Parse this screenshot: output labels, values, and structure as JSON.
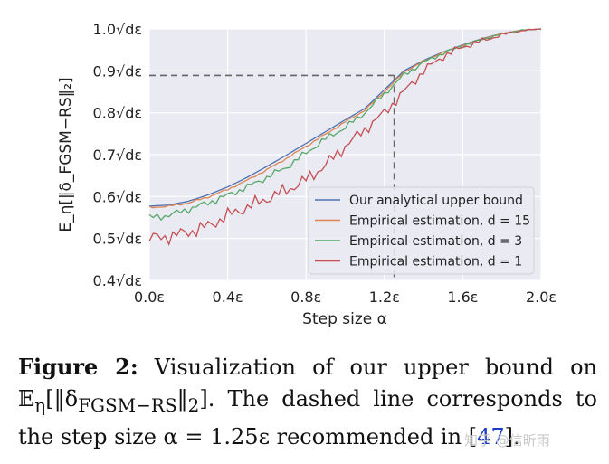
{
  "chart_data": {
    "type": "line",
    "xlabel": "Step size α",
    "ylabel": "E_η[‖δ_FGSM−RS‖₂]",
    "xlim": [
      0.0,
      2.0
    ],
    "ylim": [
      0.4,
      1.0
    ],
    "x_ticks": [
      {
        "value": 0.0,
        "label": "0.0ε"
      },
      {
        "value": 0.4,
        "label": "0.4ε"
      },
      {
        "value": 0.8,
        "label": "0.8ε"
      },
      {
        "value": 1.2,
        "label": "1.2ε"
      },
      {
        "value": 1.6,
        "label": "1.6ε"
      },
      {
        "value": 2.0,
        "label": "2.0ε"
      }
    ],
    "y_ticks": [
      {
        "value": 0.4,
        "label": "0.4√dε"
      },
      {
        "value": 0.5,
        "label": "0.5√dε"
      },
      {
        "value": 0.6,
        "label": "0.6√dε"
      },
      {
        "value": 0.7,
        "label": "0.7√dε"
      },
      {
        "value": 0.8,
        "label": "0.8√dε"
      },
      {
        "value": 0.9,
        "label": "0.9√dε"
      },
      {
        "value": 1.0,
        "label": "1.0√dε"
      }
    ],
    "reference_line": {
      "x": 1.25,
      "y": 0.889
    },
    "grid": true,
    "legend_position": "lower-right",
    "series": [
      {
        "name": "Our analytical upper bound",
        "color": "#4c72b0",
        "noise": 0,
        "x": [
          0,
          0.1,
          0.2,
          0.3,
          0.4,
          0.5,
          0.6,
          0.7,
          0.8,
          0.9,
          1.0,
          1.1,
          1.2,
          1.3,
          1.4,
          1.5,
          1.6,
          1.7,
          1.8,
          1.9,
          2.0
        ],
        "y": [
          0.577,
          0.58,
          0.589,
          0.604,
          0.623,
          0.646,
          0.672,
          0.699,
          0.727,
          0.755,
          0.783,
          0.81,
          0.855,
          0.9,
          0.925,
          0.945,
          0.962,
          0.977,
          0.989,
          0.997,
          1.0
        ]
      },
      {
        "name": "Empirical estimation, d = 15",
        "color": "#dd8452",
        "noise": 0.002,
        "x": [
          0,
          0.1,
          0.2,
          0.3,
          0.4,
          0.5,
          0.6,
          0.7,
          0.8,
          0.9,
          1.0,
          1.1,
          1.2,
          1.3,
          1.4,
          1.5,
          1.6,
          1.7,
          1.8,
          1.9,
          2.0
        ],
        "y": [
          0.574,
          0.577,
          0.585,
          0.599,
          0.617,
          0.639,
          0.664,
          0.691,
          0.72,
          0.749,
          0.778,
          0.806,
          0.85,
          0.897,
          0.923,
          0.944,
          0.961,
          0.976,
          0.989,
          0.997,
          1.0
        ]
      },
      {
        "name": "Empirical estimation, d = 3",
        "color": "#55a868",
        "noise": 0.007,
        "x": [
          0,
          0.1,
          0.2,
          0.3,
          0.4,
          0.5,
          0.6,
          0.7,
          0.8,
          0.9,
          1.0,
          1.1,
          1.2,
          1.3,
          1.4,
          1.5,
          1.6,
          1.7,
          1.8,
          1.9,
          2.0
        ],
        "y": [
          0.55,
          0.555,
          0.57,
          0.585,
          0.603,
          0.623,
          0.646,
          0.67,
          0.704,
          0.738,
          0.765,
          0.8,
          0.845,
          0.89,
          0.92,
          0.942,
          0.96,
          0.975,
          0.988,
          0.997,
          1.0
        ]
      },
      {
        "name": "Empirical estimation, d = 1",
        "color": "#c44e52",
        "noise": 0.014,
        "x": [
          0,
          0.1,
          0.2,
          0.3,
          0.4,
          0.5,
          0.6,
          0.7,
          0.8,
          0.9,
          1.0,
          1.1,
          1.2,
          1.3,
          1.4,
          1.5,
          1.6,
          1.7,
          1.8,
          1.9,
          2.0
        ],
        "y": [
          0.5,
          0.505,
          0.515,
          0.53,
          0.555,
          0.575,
          0.595,
          0.615,
          0.64,
          0.675,
          0.72,
          0.76,
          0.8,
          0.85,
          0.9,
          0.935,
          0.957,
          0.972,
          0.986,
          0.996,
          1.0
        ]
      }
    ]
  },
  "caption": {
    "figure_label": "Figure 2:",
    "text_part1": "Visualization of our upper bound on 𝔼",
    "text_part2": "[‖δ",
    "text_part3": "‖",
    "text_part4": "]. The dashed line corresponds to the step size α = 1.25ε recommended in [",
    "citation": "47",
    "text_part5": "].",
    "sub_eta": "η",
    "sub_fgsm": "FGSM−RS",
    "sub_2": "2"
  },
  "watermark": "知乎 @信昕雨"
}
